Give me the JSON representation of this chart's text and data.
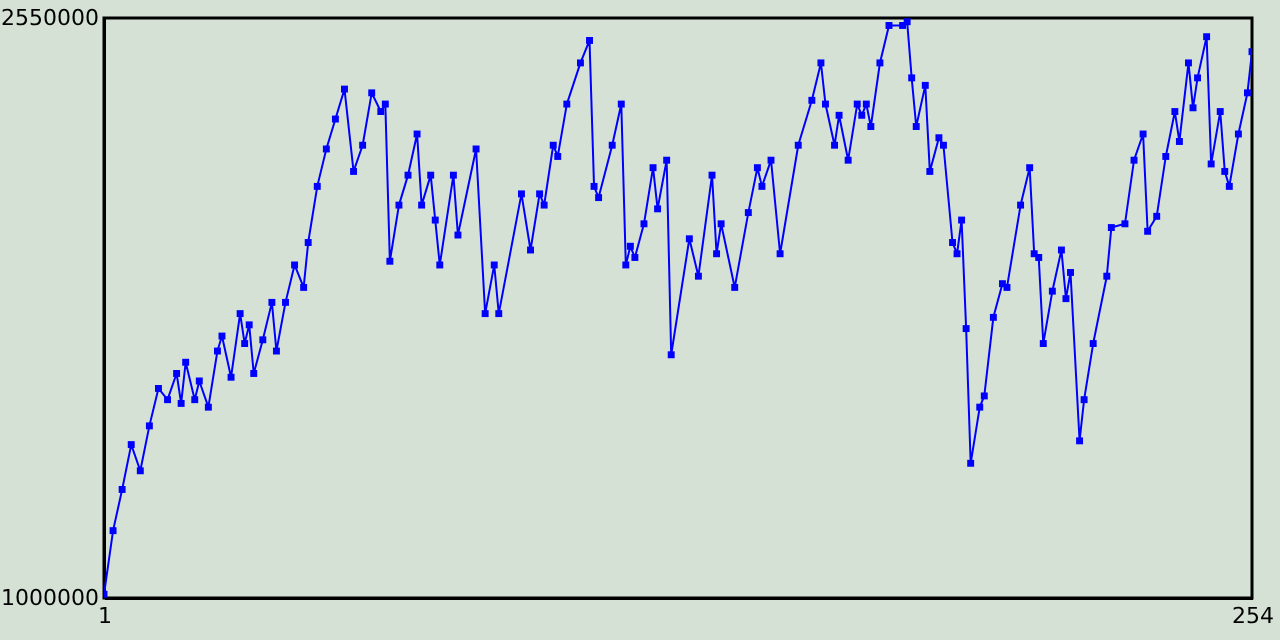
{
  "chart_data": {
    "type": "line",
    "color": "#0000ff",
    "marker": "square",
    "line_style": "solid",
    "xlim": [
      1,
      254
    ],
    "ylim": [
      1000000,
      2550000
    ],
    "xticks": [
      1,
      254
    ],
    "yticks": [
      1000000,
      2550000
    ],
    "x": [
      1,
      3,
      5,
      7,
      9,
      11,
      13,
      15,
      17,
      18,
      19,
      21,
      22,
      24,
      26,
      27,
      29,
      31,
      32,
      33,
      34,
      36,
      38,
      39,
      41,
      43,
      45,
      46,
      48,
      50,
      52,
      54,
      56,
      58,
      60,
      62,
      63,
      64,
      66,
      68,
      70,
      71,
      73,
      74,
      75,
      78,
      79,
      83,
      85,
      87,
      88,
      93,
      95,
      97,
      98,
      100,
      101,
      103,
      106,
      108,
      109,
      110,
      113,
      115,
      116,
      117,
      118,
      120,
      122,
      123,
      125,
      126,
      130,
      132,
      135,
      136,
      137,
      140,
      143,
      145,
      146,
      148,
      150,
      154,
      157,
      159,
      160,
      162,
      163,
      165,
      167,
      168,
      169,
      170,
      172,
      174,
      177,
      178,
      179,
      180,
      182,
      183,
      185,
      186,
      188,
      189,
      190,
      191,
      192,
      194,
      195,
      197,
      199,
      200,
      203,
      205,
      206,
      207,
      208,
      210,
      212,
      213,
      214,
      216,
      217,
      219,
      222,
      223,
      226,
      228,
      230,
      231,
      233,
      235,
      237,
      238,
      240,
      241,
      242,
      244,
      245,
      247,
      248,
      249,
      251,
      253,
      254
    ],
    "values": [
      1010000,
      1180000,
      1290000,
      1410000,
      1340000,
      1460000,
      1560000,
      1530000,
      1600000,
      1520000,
      1630000,
      1530000,
      1580000,
      1510000,
      1660000,
      1700000,
      1590000,
      1760000,
      1680000,
      1730000,
      1600000,
      1690000,
      1790000,
      1660000,
      1790000,
      1890000,
      1830000,
      1950000,
      2100000,
      2200000,
      2280000,
      2360000,
      2140000,
      2210000,
      2350000,
      2300000,
      2320000,
      1900000,
      2050000,
      2130000,
      2240000,
      2050000,
      2130000,
      2010000,
      1890000,
      2130000,
      1970000,
      2200000,
      1760000,
      1890000,
      1760000,
      2080000,
      1930000,
      2080000,
      2050000,
      2210000,
      2180000,
      2320000,
      2430000,
      2490000,
      2100000,
      2070000,
      2210000,
      2320000,
      1890000,
      1940000,
      1910000,
      2000000,
      2150000,
      2040000,
      2170000,
      1650000,
      1960000,
      1860000,
      2130000,
      1920000,
      2000000,
      1830000,
      2030000,
      2150000,
      2100000,
      2170000,
      1920000,
      2210000,
      2330000,
      2430000,
      2320000,
      2210000,
      2290000,
      2170000,
      2320000,
      2290000,
      2320000,
      2260000,
      2430000,
      2530000,
      2530000,
      2540000,
      2390000,
      2260000,
      2370000,
      2140000,
      2230000,
      2210000,
      1950000,
      1920000,
      2010000,
      1720000,
      1360000,
      1510000,
      1540000,
      1750000,
      1840000,
      1830000,
      2050000,
      2150000,
      1920000,
      1910000,
      1680000,
      1820000,
      1930000,
      1800000,
      1870000,
      1420000,
      1530000,
      1680000,
      1860000,
      1990000,
      2000000,
      2170000,
      2240000,
      1980000,
      2020000,
      2180000,
      2300000,
      2220000,
      2430000,
      2310000,
      2390000,
      2500000,
      2160000,
      2300000,
      2140000,
      2100000,
      2240000,
      2350000,
      2460000
    ]
  }
}
